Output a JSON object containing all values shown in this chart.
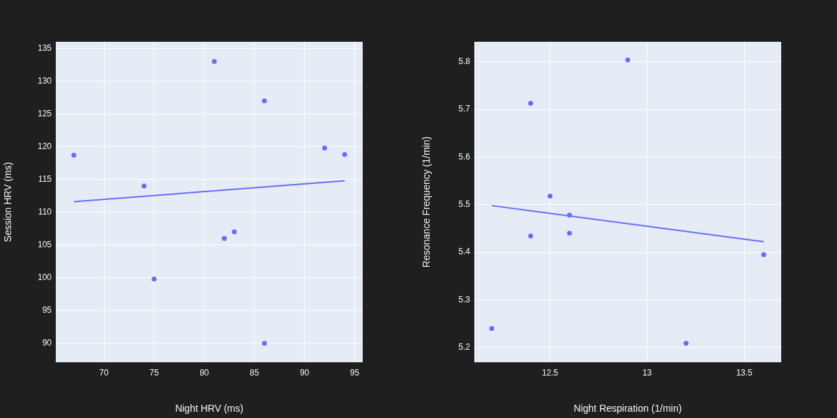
{
  "chart_data": [
    {
      "type": "scatter",
      "xlabel": "Night HRV (ms)",
      "ylabel": "Session HRV (ms)",
      "xlim": [
        65.2,
        95.8
      ],
      "ylim": [
        87.1,
        136
      ],
      "xticks": [
        70,
        75,
        80,
        85,
        90,
        95
      ],
      "yticks": [
        90,
        95,
        100,
        105,
        110,
        115,
        120,
        125,
        130,
        135
      ],
      "grid": true,
      "legend": false,
      "marker": "circle",
      "series": [
        {
          "color": "#636efa",
          "x": [
            67,
            74,
            75,
            81,
            82,
            83,
            86,
            86,
            92,
            94
          ],
          "values": [
            118.7,
            114,
            99.8,
            133,
            106,
            107,
            127,
            90,
            119.8,
            118.8
          ]
        },
        {
          "type": "line",
          "color": "#636efa",
          "marker": "none",
          "line_style": "solid",
          "x": [
            67,
            94
          ],
          "values": [
            111.6,
            114.8
          ]
        }
      ]
    },
    {
      "type": "scatter",
      "xlabel": "Night Respiration (1/min)",
      "ylabel": "Resonance Frequency (1/min)",
      "xlim": [
        12.11,
        13.69
      ],
      "ylim": [
        5.169,
        5.842
      ],
      "xticks": [
        12.5,
        13,
        13.5
      ],
      "yticks": [
        5.2,
        5.3,
        5.4,
        5.5,
        5.6,
        5.7,
        5.8
      ],
      "grid": true,
      "legend": false,
      "marker": "circle",
      "series": [
        {
          "color": "#636efa",
          "x": [
            12.2,
            12.4,
            12.4,
            12.5,
            12.6,
            12.6,
            12.9,
            13.2,
            13.6
          ],
          "values": [
            5.24,
            5.713,
            5.434,
            5.518,
            5.478,
            5.44,
            5.804,
            5.209,
            5.395
          ]
        },
        {
          "type": "line",
          "color": "#636efa",
          "marker": "none",
          "line_style": "solid",
          "x": [
            12.2,
            13.6
          ],
          "values": [
            5.498,
            5.422
          ]
        }
      ]
    }
  ]
}
